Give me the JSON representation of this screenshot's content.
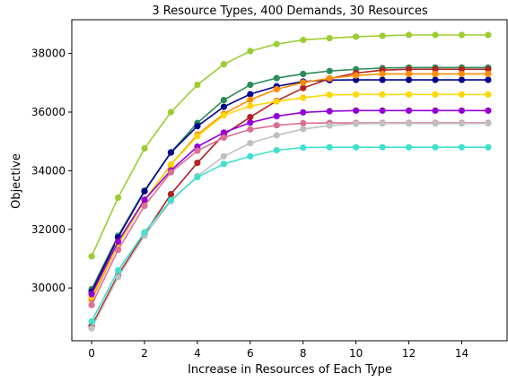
{
  "chart_data": {
    "type": "line",
    "title": "3 Resource Types, 400 Demands, 30 Resources",
    "xlabel": "Increase in Resources of Each Type",
    "ylabel": "Objective",
    "xlim": [
      -0.75,
      15.75
    ],
    "ylim": [
      28200,
      39150
    ],
    "xticks": [
      0,
      2,
      4,
      6,
      8,
      10,
      12,
      14
    ],
    "yticks": [
      30000,
      32000,
      34000,
      36000,
      38000
    ],
    "x": [
      0,
      1,
      2,
      3,
      4,
      5,
      6,
      7,
      8,
      9,
      10,
      11,
      12,
      13,
      14,
      15
    ],
    "grid": false,
    "series": [
      {
        "color": "#9acd32",
        "values": [
          31080,
          33080,
          34760,
          36000,
          36930,
          37630,
          38080,
          38320,
          38460,
          38520,
          38570,
          38600,
          38630,
          38630,
          38630,
          38630
        ]
      },
      {
        "color": "#2e8b57",
        "values": [
          29960,
          31780,
          33320,
          34630,
          35630,
          36410,
          36930,
          37160,
          37300,
          37400,
          37460,
          37500,
          37520,
          37520,
          37520,
          37520
        ]
      },
      {
        "color": "#00008b",
        "values": [
          29870,
          31720,
          33300,
          34620,
          35520,
          36180,
          36610,
          36880,
          37040,
          37090,
          37100,
          37100,
          37100,
          37100,
          37100,
          37100
        ]
      },
      {
        "color": "#b22222",
        "values": [
          28700,
          30450,
          31840,
          33200,
          34270,
          35230,
          35830,
          36380,
          36820,
          37140,
          37330,
          37430,
          37460,
          37460,
          37460,
          37460
        ]
      },
      {
        "color": "#ff8c00",
        "values": [
          29600,
          31480,
          32980,
          34210,
          35230,
          35940,
          36420,
          36780,
          37010,
          37150,
          37250,
          37300,
          37300,
          37300,
          37300,
          37300
        ]
      },
      {
        "color": "#ffd700",
        "values": [
          29700,
          31500,
          33000,
          34200,
          35180,
          35890,
          36210,
          36360,
          36490,
          36590,
          36600,
          36600,
          36600,
          36600,
          36600,
          36600
        ]
      },
      {
        "color": "#9400d3",
        "values": [
          29790,
          31580,
          33010,
          34010,
          34820,
          35300,
          35640,
          35860,
          35990,
          36030,
          36050,
          36050,
          36050,
          36050,
          36050,
          36050
        ]
      },
      {
        "color": "#db7093",
        "values": [
          29420,
          31300,
          32800,
          33950,
          34680,
          35130,
          35410,
          35550,
          35620,
          35630,
          35630,
          35630,
          35630,
          35630,
          35630,
          35630
        ]
      },
      {
        "color": "#c0c0c0",
        "values": [
          28620,
          30370,
          31780,
          32960,
          33820,
          34490,
          34940,
          35210,
          35420,
          35540,
          35600,
          35610,
          35610,
          35610,
          35610,
          35610
        ]
      },
      {
        "color": "#40e0d0",
        "values": [
          28860,
          30600,
          31900,
          33000,
          33780,
          34230,
          34490,
          34700,
          34790,
          34800,
          34800,
          34800,
          34800,
          34800,
          34800,
          34800
        ]
      }
    ]
  }
}
